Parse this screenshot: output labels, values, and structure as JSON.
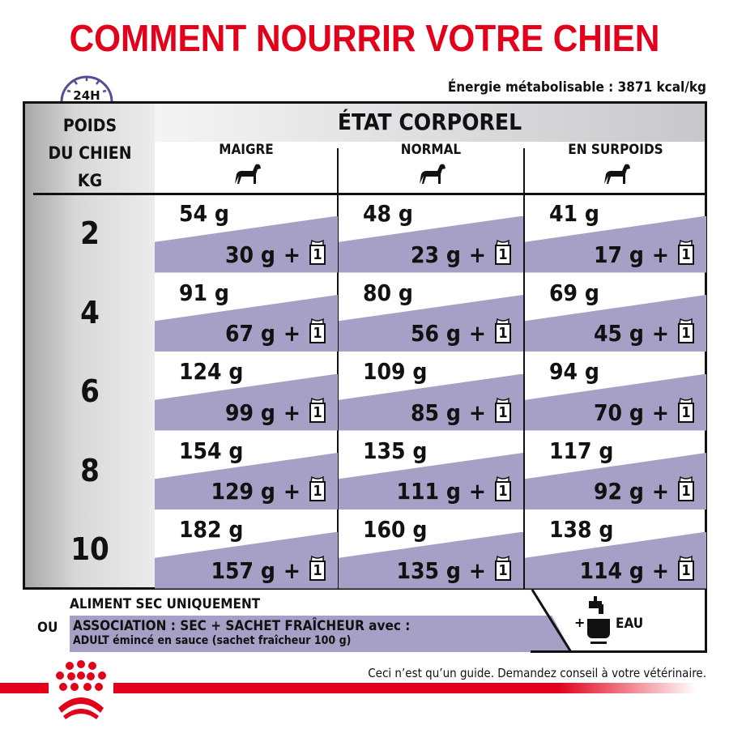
{
  "title": "COMMENT NOURRIR VOTRE CHIEN",
  "clock_label": "24H",
  "energy": "Énergie métabolisable : 3871 kcal/kg",
  "header": {
    "weight_label": [
      "POIDS",
      "DU CHIEN",
      "KG"
    ],
    "state_label": "ÉTAT CORPOREL"
  },
  "columns": [
    "MAIGRE",
    "NORMAL",
    "EN SURPOIDS"
  ],
  "plus": "+",
  "pouch_count": "1",
  "rows": [
    {
      "weight": "2",
      "cells": [
        [
          "54 g",
          "30 g"
        ],
        [
          "48 g",
          "23 g"
        ],
        [
          "41 g",
          "17 g"
        ]
      ]
    },
    {
      "weight": "4",
      "cells": [
        [
          "91 g",
          "67 g"
        ],
        [
          "80 g",
          "56 g"
        ],
        [
          "69 g",
          "45 g"
        ]
      ]
    },
    {
      "weight": "6",
      "cells": [
        [
          "124 g",
          "99 g"
        ],
        [
          "109 g",
          "85 g"
        ],
        [
          "94 g",
          "70 g"
        ]
      ]
    },
    {
      "weight": "8",
      "cells": [
        [
          "154 g",
          "129 g"
        ],
        [
          "135 g",
          "111 g"
        ],
        [
          "117 g",
          "92 g"
        ]
      ]
    },
    {
      "weight": "10",
      "cells": [
        [
          "182 g",
          "157 g"
        ],
        [
          "160 g",
          "135 g"
        ],
        [
          "138 g",
          "114 g"
        ]
      ]
    }
  ],
  "legend": {
    "dry_only": "ALIMENT SEC UNIQUEMENT",
    "or": "OU",
    "mix_title": "ASSOCIATION : SEC + SACHET FRAÎCHEUR avec :",
    "mix_detail": "ADULT émincé en sauce (sachet fraîcheur 100 g)",
    "water_plus": "+",
    "water": "EAU"
  },
  "disclaimer": "Ceci n’est qu’un guide. Demandez conseil à votre vétérinaire.",
  "colors": {
    "brand_red": "#e2001a",
    "purple": "#a6a0c6",
    "clock": "#5a4a94"
  }
}
